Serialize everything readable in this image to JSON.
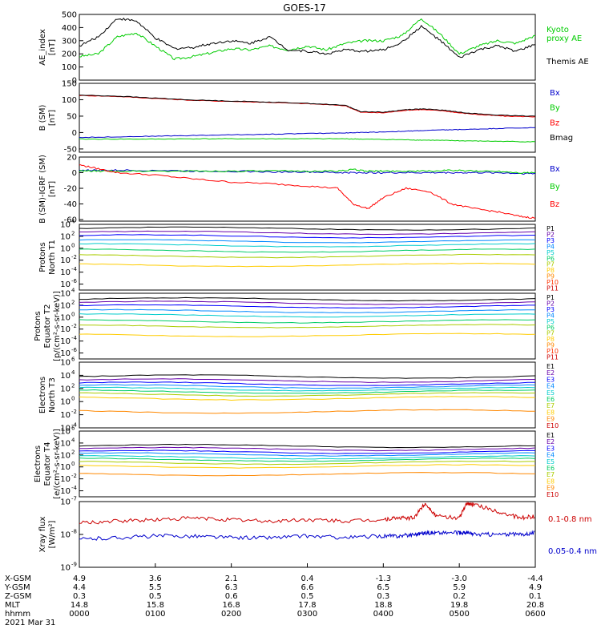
{
  "title": "GOES-17",
  "chart_data": [
    {
      "type": "line",
      "ylabel": [
        "AE_index",
        "[nT]"
      ],
      "ylim": [
        0,
        500
      ],
      "yticks": [
        "0",
        "100",
        "200",
        "300",
        "400",
        "500"
      ],
      "x": [
        0,
        0.25,
        0.5,
        0.75,
        1,
        1.25,
        1.5,
        1.75,
        2,
        2.25,
        2.5,
        2.75,
        3,
        3.25,
        3.5,
        3.75,
        4,
        4.25,
        4.5,
        4.75,
        5,
        5.25,
        5.5,
        5.75,
        6
      ],
      "series": [
        {
          "name": "Kyoto proxy AE",
          "color": "#00cc00",
          "values": [
            180,
            200,
            330,
            360,
            260,
            160,
            180,
            210,
            240,
            230,
            260,
            230,
            260,
            230,
            280,
            300,
            300,
            340,
            470,
            350,
            200,
            260,
            300,
            280,
            340
          ]
        },
        {
          "name": "Themis AE",
          "color": "#000000",
          "values": [
            260,
            330,
            470,
            450,
            320,
            240,
            250,
            280,
            300,
            280,
            330,
            230,
            220,
            200,
            230,
            220,
            230,
            290,
            410,
            300,
            170,
            230,
            260,
            220,
            270
          ]
        }
      ]
    },
    {
      "type": "line",
      "ylabel": [
        "B (SM)",
        "[nT]"
      ],
      "ylim": [
        -60,
        150
      ],
      "yticks": [
        "-50",
        "0",
        "50",
        "100",
        "150"
      ],
      "x": [
        0,
        0.5,
        1,
        1.5,
        2,
        2.5,
        3,
        3.5,
        3.7,
        4,
        4.3,
        4.5,
        4.8,
        5,
        5.3,
        5.6,
        6
      ],
      "series": [
        {
          "name": "Bx",
          "color": "#0000cc",
          "values": [
            -15,
            -13,
            -11,
            -9,
            -7,
            -5,
            -3,
            -1,
            0,
            2,
            4,
            6,
            8,
            9,
            11,
            13,
            15
          ]
        },
        {
          "name": "By",
          "color": "#00cc00",
          "values": [
            -20,
            -20,
            -20,
            -19,
            -19,
            -19,
            -19,
            -19,
            -20,
            -21,
            -22,
            -23,
            -24,
            -25,
            -26,
            -27,
            -28
          ]
        },
        {
          "name": "Bz",
          "color": "#ff0000",
          "values": [
            113,
            110,
            104,
            98,
            95,
            92,
            88,
            82,
            62,
            60,
            68,
            70,
            66,
            60,
            54,
            50,
            48
          ]
        },
        {
          "name": "Bmag",
          "color": "#000000",
          "values": [
            114,
            111,
            105,
            99,
            96,
            93,
            89,
            83,
            64,
            62,
            70,
            72,
            68,
            62,
            56,
            52,
            50
          ]
        }
      ]
    },
    {
      "type": "line",
      "ylabel": [
        "B (SM)-IGRF (SM)",
        "[nT]"
      ],
      "ylim": [
        -62,
        20
      ],
      "yticks": [
        "-60",
        "-40",
        "-20",
        "0",
        "20"
      ],
      "x": [
        0,
        0.2,
        0.5,
        1,
        1.5,
        2,
        2.5,
        3,
        3.4,
        3.6,
        3.8,
        4,
        4.3,
        4.6,
        4.9,
        5.2,
        5.5,
        5.8,
        6
      ],
      "series": [
        {
          "name": "Bx",
          "color": "#0000cc",
          "values": [
            3,
            3,
            3,
            3,
            2,
            2,
            1,
            1,
            0,
            0,
            0,
            0,
            0,
            0,
            0,
            0,
            0,
            -1,
            -1
          ]
        },
        {
          "name": "By",
          "color": "#00cc00",
          "values": [
            2,
            2,
            2,
            2,
            2,
            2,
            2,
            2,
            2,
            4,
            2,
            2,
            2,
            2,
            3,
            2,
            2,
            0,
            0
          ]
        },
        {
          "name": "Bz",
          "color": "#ff0000",
          "values": [
            10,
            6,
            0,
            -3,
            -8,
            -12,
            -14,
            -17,
            -20,
            -40,
            -46,
            -32,
            -20,
            -24,
            -40,
            -46,
            -50,
            -56,
            -58
          ]
        }
      ]
    },
    {
      "type": "line",
      "log": true,
      "ylabel": [
        "Protons",
        "North T1"
      ],
      "ylim_exp": [
        -7,
        4
      ],
      "yticks": [
        [
          4,
          "4"
        ],
        [
          2,
          "2"
        ],
        [
          0,
          "0"
        ],
        [
          -2,
          "-2"
        ],
        [
          -4,
          "-4"
        ],
        [
          -6,
          "-6"
        ]
      ],
      "tick_base": "10",
      "legend": [
        [
          "P1",
          "#000000"
        ],
        [
          "P2",
          "#6600aa"
        ],
        [
          "P3",
          "#0000ff"
        ],
        [
          "P4",
          "#0088ff"
        ],
        [
          "P5",
          "#00cccc"
        ],
        [
          "P6",
          "#00cc66"
        ],
        [
          "P7",
          "#aacc00"
        ],
        [
          "P8",
          "#ffcc00"
        ],
        [
          "P9",
          "#ff8800"
        ],
        [
          "P10",
          "#ff3300"
        ],
        [
          "P11",
          "#cc0000"
        ]
      ],
      "levels_exp": [
        3.3,
        2.6,
        2.0,
        1.2,
        0.5,
        -0.4,
        -1.3,
        -2.8
      ]
    },
    {
      "type": "line",
      "log": true,
      "ylabel": [
        "Protons",
        "Equator T2",
        "[p/(cm²-s-sr-keV)]"
      ],
      "ylim_exp": [
        -7,
        4
      ],
      "yticks": [
        [
          4,
          "4"
        ],
        [
          2,
          "2"
        ],
        [
          0,
          "0"
        ],
        [
          -2,
          "-2"
        ],
        [
          -4,
          "-4"
        ],
        [
          -6,
          "-6"
        ]
      ],
      "tick_base": "10",
      "legend": [
        [
          "P1",
          "#000000"
        ],
        [
          "P2",
          "#6600aa"
        ],
        [
          "P3",
          "#0000ff"
        ],
        [
          "P4",
          "#0088ff"
        ],
        [
          "P5",
          "#00cccc"
        ],
        [
          "P6",
          "#00cc66"
        ],
        [
          "P7",
          "#aacc00"
        ],
        [
          "P8",
          "#ffcc00"
        ],
        [
          "P9",
          "#ff8800"
        ],
        [
          "P10",
          "#ff3300"
        ],
        [
          "P11",
          "#cc0000"
        ]
      ],
      "levels_exp": [
        3.0,
        2.4,
        1.8,
        1.0,
        0.3,
        -0.7,
        -1.5,
        -3.0
      ]
    },
    {
      "type": "line",
      "log": true,
      "ylabel": [
        "Electrons",
        "North T3"
      ],
      "ylim_exp": [
        -4,
        6
      ],
      "yticks": [
        [
          6,
          "6"
        ],
        [
          4,
          "4"
        ],
        [
          2,
          "2"
        ],
        [
          0,
          "0"
        ],
        [
          -2,
          "-2"
        ],
        [
          -4,
          "-4"
        ]
      ],
      "tick_base": "10",
      "legend": [
        [
          "E1",
          "#000000"
        ],
        [
          "E2",
          "#6600aa"
        ],
        [
          "E3",
          "#0000ff"
        ],
        [
          "E4",
          "#0088ff"
        ],
        [
          "E5",
          "#00cccc"
        ],
        [
          "E6",
          "#00cc66"
        ],
        [
          "E7",
          "#aacc00"
        ],
        [
          "E8",
          "#ffcc00"
        ],
        [
          "E9",
          "#ff8800"
        ],
        [
          "E10",
          "#cc0000"
        ]
      ],
      "levels_exp": [
        3.8,
        3.2,
        2.7,
        2.3,
        1.9,
        1.5,
        1.1,
        0.5,
        -1.5
      ]
    },
    {
      "type": "line",
      "log": true,
      "ylabel": [
        "Electrons",
        "Equator T4",
        "[e/(cm²-s-sr-keV)]"
      ],
      "ylim_exp": [
        -5,
        6
      ],
      "yticks": [
        [
          6,
          "6"
        ],
        [
          4,
          "4"
        ],
        [
          2,
          "2"
        ],
        [
          0,
          "0"
        ],
        [
          -2,
          "-2"
        ],
        [
          -4,
          "-4"
        ]
      ],
      "tick_base": "10",
      "legend": [
        [
          "E1",
          "#000000"
        ],
        [
          "E2",
          "#6600aa"
        ],
        [
          "E3",
          "#0000ff"
        ],
        [
          "E4",
          "#0088ff"
        ],
        [
          "E5",
          "#00cccc"
        ],
        [
          "E6",
          "#00cc66"
        ],
        [
          "E7",
          "#aacc00"
        ],
        [
          "E8",
          "#ffcc00"
        ],
        [
          "E9",
          "#ff8800"
        ],
        [
          "E10",
          "#cc0000"
        ]
      ],
      "levels_exp": [
        3.5,
        3.0,
        2.5,
        2.1,
        1.6,
        1.2,
        0.7,
        0.1,
        -1.2
      ]
    },
    {
      "type": "line",
      "log": true,
      "ylabel": [
        "Xray flux",
        "[W/m²]"
      ],
      "ylim_exp": [
        -9,
        -7
      ],
      "yticks": [
        [
          -7,
          "-7"
        ],
        [
          -8,
          "-8"
        ],
        [
          -9,
          "-9"
        ]
      ],
      "tick_base": "10",
      "x": [
        0,
        0.5,
        1,
        1.5,
        2,
        2.5,
        3,
        3.5,
        4,
        4.2,
        4.4,
        4.55,
        4.7,
        5,
        5.1,
        5.2,
        5.5,
        5.8,
        6
      ],
      "series": [
        {
          "name": "0.1-0.8 nm",
          "color": "#cc0000",
          "exps": [
            -7.65,
            -7.6,
            -7.55,
            -7.5,
            -7.55,
            -7.6,
            -7.55,
            -7.6,
            -7.55,
            -7.5,
            -7.5,
            -7.05,
            -7.45,
            -7.5,
            -7.05,
            -7.1,
            -7.3,
            -7.5,
            -7.45
          ]
        },
        {
          "name": "0.05-0.4 nm",
          "color": "#0000cc",
          "exps": [
            -8.15,
            -8.1,
            -8.05,
            -8.05,
            -8.1,
            -8.1,
            -8.05,
            -8.1,
            -8.05,
            -8.05,
            -8.0,
            -7.95,
            -7.95,
            -7.95,
            -7.95,
            -8.0,
            -8.0,
            -8.0,
            -7.95
          ]
        }
      ]
    }
  ],
  "xaxis": {
    "rows": [
      {
        "label": "X-GSM",
        "values": [
          "4.9",
          "3.6",
          "2.1",
          "0.4",
          "-1.3",
          "-3.0",
          "-4.4"
        ]
      },
      {
        "label": "Y-GSM",
        "values": [
          "4.4",
          "5.5",
          "6.3",
          "6.6",
          "6.5",
          "5.9",
          "4.9"
        ]
      },
      {
        "label": "Z-GSM",
        "values": [
          "0.3",
          "0.5",
          "0.6",
          "0.5",
          "0.3",
          "0.2",
          "0.1"
        ]
      },
      {
        "label": "MLT",
        "values": [
          "14.8",
          "15.8",
          "16.8",
          "17.8",
          "18.8",
          "19.8",
          "20.8"
        ]
      },
      {
        "label": "hhmm",
        "values": [
          "0000",
          "0100",
          "0200",
          "0300",
          "0400",
          "0500",
          "0600"
        ]
      }
    ],
    "date": "2021 Mar 31",
    "range": [
      0,
      6
    ]
  }
}
